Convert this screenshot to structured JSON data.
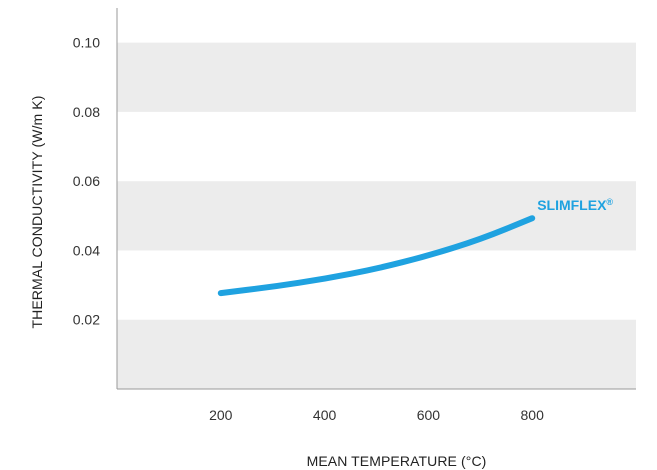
{
  "chart_data": {
    "type": "line",
    "title": "",
    "xlabel": "MEAN TEMPERATURE (°C)",
    "ylabel": "THERMAL CONDUCTIVITY (W/m K)",
    "xlim": [
      0,
      1000
    ],
    "ylim": [
      0,
      0.11
    ],
    "x_ticks": [
      200,
      400,
      600,
      800
    ],
    "x_tick_labels": [
      "200",
      "400",
      "600",
      "800"
    ],
    "y_ticks": [
      0.02,
      0.04,
      0.06,
      0.08,
      0.1
    ],
    "y_tick_labels": [
      "0.02",
      "0.04",
      "0.06",
      "0.08",
      "0.10"
    ],
    "grid": "alternating horizontal bands",
    "band_color": "#ececec",
    "axis_color": "#9a9a9a",
    "series": [
      {
        "name": "SLIMFLEX®",
        "color": "#1fa2e0",
        "x": [
          200,
          300,
          400,
          500,
          600,
          700,
          800
        ],
        "y": [
          0.0277,
          0.0295,
          0.0318,
          0.0347,
          0.0385,
          0.0432,
          0.0493
        ]
      }
    ]
  }
}
